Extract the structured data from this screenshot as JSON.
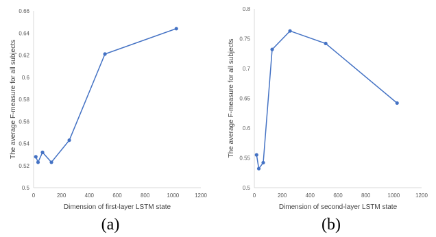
{
  "charts": [
    {
      "caption": "(a)",
      "chart_data": {
        "type": "line",
        "x": [
          16,
          32,
          64,
          128,
          256,
          512,
          1024
        ],
        "series": [
          {
            "values": [
              0.528,
              0.523,
              0.532,
              0.523,
              0.543,
              0.621,
              0.644
            ]
          }
        ],
        "xlabel": "Dimension of first-layer LSTM state",
        "ylabel": "The average F-measure for all subjects",
        "xlim": [
          0,
          1200
        ],
        "ylim": [
          0.5,
          0.66
        ],
        "xticks": [
          "0",
          "200",
          "400",
          "600",
          "800",
          "1000",
          "1200"
        ],
        "yticks": [
          "0.5",
          "0.52",
          "0.54",
          "0.56",
          "0.58",
          "0.6",
          "0.62",
          "0.64",
          "0.66"
        ],
        "grid": false,
        "color": "#4472C4"
      }
    },
    {
      "caption": "(b)",
      "chart_data": {
        "type": "line",
        "x": [
          16,
          32,
          64,
          128,
          256,
          512,
          1024
        ],
        "series": [
          {
            "values": [
              0.555,
              0.532,
              0.542,
              0.732,
              0.763,
              0.742,
              0.642
            ]
          }
        ],
        "xlabel": "Dimension of second-layer LSTM state",
        "ylabel": "The average F-measure for all subjects",
        "xlim": [
          0,
          1200
        ],
        "ylim": [
          0.5,
          0.8
        ],
        "xticks": [
          "0",
          "200",
          "400",
          "600",
          "800",
          "1000",
          "1200"
        ],
        "yticks": [
          "0.5",
          "0.55",
          "0.6",
          "0.65",
          "0.7",
          "0.75",
          "0.8"
        ],
        "grid": false,
        "color": "#4472C4"
      }
    }
  ]
}
